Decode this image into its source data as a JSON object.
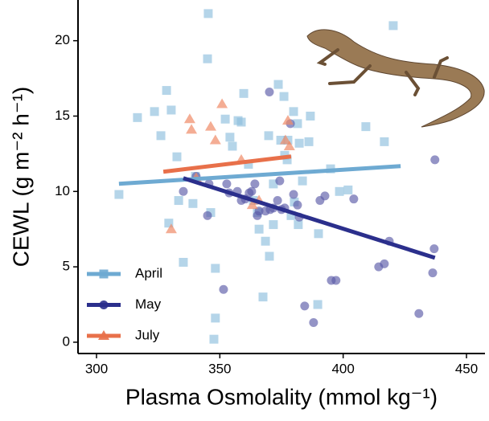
{
  "chart_data": {
    "type": "scatter",
    "xlabel": "Plasma Osmolality (mmol kg⁻¹)",
    "ylabel": "CEWL (g m⁻² h⁻¹)",
    "xlim": [
      292.5,
      457.5
    ],
    "ylim": [
      -0.75,
      22.7
    ],
    "xticks": [
      300,
      350,
      400,
      450
    ],
    "yticks": [
      0,
      5,
      10,
      15,
      20
    ],
    "legend": "bottom-left",
    "series": [
      {
        "name": "April",
        "color": "#8dbfdd",
        "line_color": "#6eaad2",
        "marker": "square",
        "x": [
          309.1,
          316.6,
          323.5,
          326.1,
          328.4,
          330.3,
          329.3,
          332.6,
          333.3,
          335.2,
          339.1,
          340.1,
          345.3,
          345.0,
          346.3,
          348.2,
          348.2,
          352.2,
          354.1,
          355.1,
          357.4,
          358.7,
          359.7,
          361.6,
          363.6,
          365.2,
          365.9,
          368.5,
          369.8,
          373.7,
          371.7,
          371.7,
          374.7,
          376.3,
          377.3,
          377.6,
          382.2,
          386.1,
          386.7,
          390.0,
          394.9,
          398.5,
          402.0,
          409.2,
          416.7,
          420.3,
          389.7,
          367.5,
          370.1,
          381.8,
          378.9,
          383.5,
          380.2,
          347.6,
          376.0,
          379.9,
          381.5
        ],
        "values": [
          9.8,
          14.9,
          15.3,
          13.7,
          16.7,
          15.4,
          7.9,
          12.3,
          9.4,
          5.3,
          9.2,
          11.0,
          21.8,
          18.8,
          8.6,
          4.9,
          1.6,
          14.8,
          13.6,
          13.0,
          14.7,
          14.6,
          16.5,
          11.8,
          9.4,
          8.6,
          7.5,
          6.7,
          13.7,
          17.1,
          10.5,
          7.8,
          13.4,
          12.4,
          12.1,
          13.4,
          13.2,
          13.3,
          15.0,
          7.2,
          11.5,
          10.0,
          10.1,
          14.3,
          13.3,
          21.0,
          2.5,
          3.0,
          5.7,
          7.8,
          8.4,
          10.7,
          9.3,
          0.2,
          16.3,
          15.3,
          14.5
        ],
        "trend": {
          "x": [
            309.1,
            423.3
          ],
          "y": [
            10.51,
            11.68
          ]
        }
      },
      {
        "name": "May",
        "color": "#5b5ba8",
        "line_color": "#2b2f8c",
        "marker": "circle",
        "x": [
          335.2,
          340.4,
          345.0,
          345.6,
          351.5,
          352.8,
          353.8,
          357.1,
          358.7,
          360.3,
          361.9,
          362.9,
          364.2,
          365.2,
          365.9,
          370.1,
          373.4,
          374.3,
          371.7,
          376.3,
          379.9,
          381.5,
          382.2,
          384.4,
          388.0,
          390.6,
          392.6,
          395.2,
          397.1,
          404.3,
          414.4,
          416.7,
          418.7,
          430.7,
          436.9,
          437.2,
          436.3,
          378.6,
          368.5,
          370.4,
          375.0
        ],
        "values": [
          10.0,
          11.0,
          8.4,
          10.5,
          3.5,
          10.5,
          9.9,
          10.0,
          9.4,
          9.5,
          9.9,
          10.0,
          10.5,
          8.4,
          8.7,
          16.6,
          9.4,
          10.7,
          8.9,
          8.9,
          9.8,
          9.1,
          8.3,
          2.4,
          1.3,
          9.4,
          9.7,
          4.1,
          4.1,
          9.5,
          5.0,
          5.2,
          6.7,
          1.9,
          6.2,
          12.1,
          4.6,
          14.5,
          8.7,
          8.8,
          8.8
        ],
        "trend": {
          "x": [
            335.2,
            437.2
          ],
          "y": [
            10.88,
            5.6
          ]
        }
      },
      {
        "name": "July",
        "color": "#ef8a66",
        "line_color": "#e8704a",
        "marker": "triangle",
        "x": [
          330.3,
          337.8,
          338.5,
          340.4,
          346.3,
          348.2,
          350.9,
          358.7,
          363.2,
          365.9,
          376.6,
          377.6,
          378.2
        ],
        "values": [
          7.5,
          14.8,
          14.1,
          10.9,
          14.3,
          13.4,
          15.8,
          12.1,
          9.1,
          9.4,
          13.4,
          14.7,
          13.0
        ],
        "trend": {
          "x": [
            327.1,
            378.9
          ],
          "y": [
            11.31,
            12.32
          ]
        }
      }
    ]
  }
}
